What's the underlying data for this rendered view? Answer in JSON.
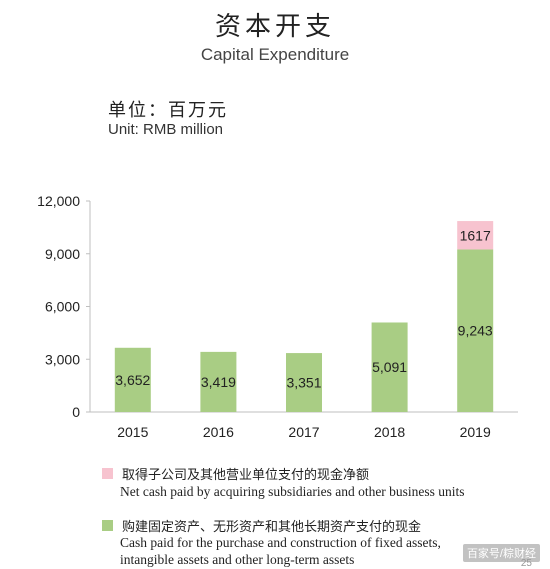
{
  "title_cn": "资本开支",
  "title_en": "Capital Expenditure",
  "unit_cn": "单位：百万元",
  "unit_en": "Unit: RMB million",
  "chart_data": {
    "type": "bar",
    "stacked": true,
    "categories": [
      "2015",
      "2016",
      "2017",
      "2018",
      "2019"
    ],
    "series": [
      {
        "name": "购建固定资产、无形资产和其他长期资产支付的现金 / Cash paid for the purchase and construction of fixed assets, intangible assets and other long-term assets",
        "values": [
          3652,
          3419,
          3351,
          5091,
          9243
        ],
        "labels": [
          "3,652",
          "3,419",
          "3,351",
          "5,091",
          "9,243"
        ],
        "color": "#a9cd84"
      },
      {
        "name": "取得子公司及其他营业单位支付的现金净额 / Net cash paid by acquiring subsidiaries and other business units",
        "values": [
          null,
          null,
          null,
          null,
          1617
        ],
        "labels": [
          "",
          "",
          "",
          "",
          "1617"
        ],
        "color": "#f7c3cf"
      }
    ],
    "ylim": [
      0,
      12000
    ],
    "yticks": [
      0,
      3000,
      6000,
      9000,
      12000
    ],
    "ytick_labels": [
      "0",
      "3,000",
      "6,000",
      "9,000",
      "12,000"
    ],
    "grid": false,
    "legend_position": "bottom"
  },
  "legend": [
    {
      "color": "#f7c3cf",
      "label_cn": "取得子公司及其他营业单位支付的现金净额",
      "label_en_lines": [
        "Net cash paid by acquiring subsidiaries and other business units"
      ]
    },
    {
      "color": "#a9cd84",
      "label_cn": "购建固定资产、无形资产和其他长期资产支付的现金",
      "label_en_lines": [
        "Cash paid for the purchase and construction of fixed assets,",
        "intangible assets and other long-term assets"
      ]
    }
  ],
  "watermark": "百家号/粽财经",
  "page_mark": "25"
}
